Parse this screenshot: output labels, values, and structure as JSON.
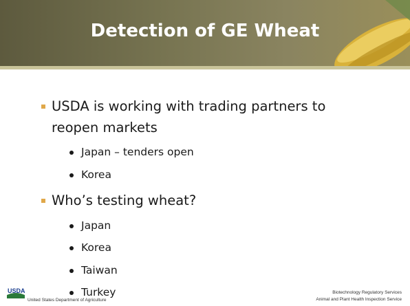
{
  "header": {
    "title": "Detection of GE Wheat"
  },
  "bullets": [
    {
      "text": "USDA is working with trading partners to",
      "text_line2": "reopen markets",
      "items": [
        "Japan – tenders open",
        "Korea"
      ]
    },
    {
      "text": "Who’s testing wheat?",
      "items": [
        "Japan",
        "Korea",
        "Taiwan",
        "Turkey"
      ]
    }
  ],
  "footer": {
    "logo": "USDA",
    "left": "United States Department of Agriculture",
    "right": [
      "Biotechnology Regulatory Services",
      "Animal and Plant Health Inspection Service"
    ]
  }
}
